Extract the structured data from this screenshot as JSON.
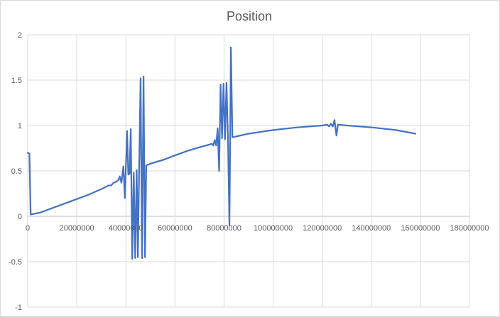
{
  "chart_data": {
    "type": "line",
    "title": "Position",
    "xlabel": "",
    "ylabel": "",
    "xlim": [
      0,
      180000000
    ],
    "ylim": [
      -1,
      2
    ],
    "x_ticks": [
      0,
      20000000,
      40000000,
      60000000,
      80000000,
      100000000,
      120000000,
      140000000,
      160000000,
      180000000
    ],
    "x_tick_labels": [
      "0",
      "20000000",
      "40000000",
      "60000000",
      "80000000",
      "100000000",
      "120000000",
      "140000000",
      "160000000",
      "180000000"
    ],
    "y_ticks": [
      -1,
      -0.5,
      0,
      0.5,
      1,
      1.5,
      2
    ],
    "y_tick_labels": [
      "-1",
      "-0.5",
      "0",
      "0.5",
      "1",
      "1.5",
      "2"
    ],
    "grid": {
      "vertical": true,
      "horizontal": true
    },
    "legend": "none",
    "series_color": "#4472c4",
    "series": [
      {
        "name": "",
        "points": [
          [
            0,
            0.7
          ],
          [
            700000,
            0.69
          ],
          [
            1200000,
            0.02
          ],
          [
            5000000,
            0.04
          ],
          [
            10000000,
            0.09
          ],
          [
            15000000,
            0.14
          ],
          [
            20000000,
            0.19
          ],
          [
            25000000,
            0.24
          ],
          [
            30000000,
            0.3
          ],
          [
            33000000,
            0.34
          ],
          [
            34000000,
            0.34
          ],
          [
            35000000,
            0.37
          ],
          [
            36000000,
            0.38
          ],
          [
            37000000,
            0.4
          ],
          [
            37500000,
            0.44
          ],
          [
            38200000,
            0.37
          ],
          [
            39000000,
            0.55
          ],
          [
            39600000,
            0.2
          ],
          [
            40500000,
            0.94
          ],
          [
            41000000,
            0.46
          ],
          [
            41500000,
            0.47
          ],
          [
            42000000,
            0.96
          ],
          [
            42600000,
            -0.47
          ],
          [
            43200000,
            0.48
          ],
          [
            43800000,
            -0.46
          ],
          [
            44400000,
            0.51
          ],
          [
            44900000,
            -0.45
          ],
          [
            45400000,
            0.51
          ],
          [
            46000000,
            1.52
          ],
          [
            46600000,
            -0.46
          ],
          [
            47200000,
            1.54
          ],
          [
            47800000,
            -0.45
          ],
          [
            48300000,
            0.56
          ],
          [
            50000000,
            0.58
          ],
          [
            55000000,
            0.62
          ],
          [
            60000000,
            0.67
          ],
          [
            65000000,
            0.72
          ],
          [
            70000000,
            0.76
          ],
          [
            74000000,
            0.79
          ],
          [
            75000000,
            0.8
          ],
          [
            75600000,
            0.78
          ],
          [
            76200000,
            0.84
          ],
          [
            76800000,
            0.78
          ],
          [
            77400000,
            0.97
          ],
          [
            78000000,
            0.5
          ],
          [
            78600000,
            1.45
          ],
          [
            79200000,
            0.86
          ],
          [
            79800000,
            1.46
          ],
          [
            80400000,
            0.85
          ],
          [
            81000000,
            1.47
          ],
          [
            81600000,
            0.86
          ],
          [
            82200000,
            -0.1
          ],
          [
            82800000,
            1.86
          ],
          [
            83400000,
            0.87
          ],
          [
            90000000,
            0.91
          ],
          [
            100000000,
            0.95
          ],
          [
            110000000,
            0.98
          ],
          [
            120000000,
            1.0
          ],
          [
            122000000,
            1.01
          ],
          [
            122800000,
            0.99
          ],
          [
            123500000,
            1.02
          ],
          [
            124300000,
            0.99
          ],
          [
            125000000,
            1.06
          ],
          [
            125800000,
            0.89
          ],
          [
            126400000,
            1.01
          ],
          [
            130000000,
            1.0
          ],
          [
            140000000,
            0.98
          ],
          [
            150000000,
            0.95
          ],
          [
            158000000,
            0.91
          ]
        ]
      }
    ]
  }
}
